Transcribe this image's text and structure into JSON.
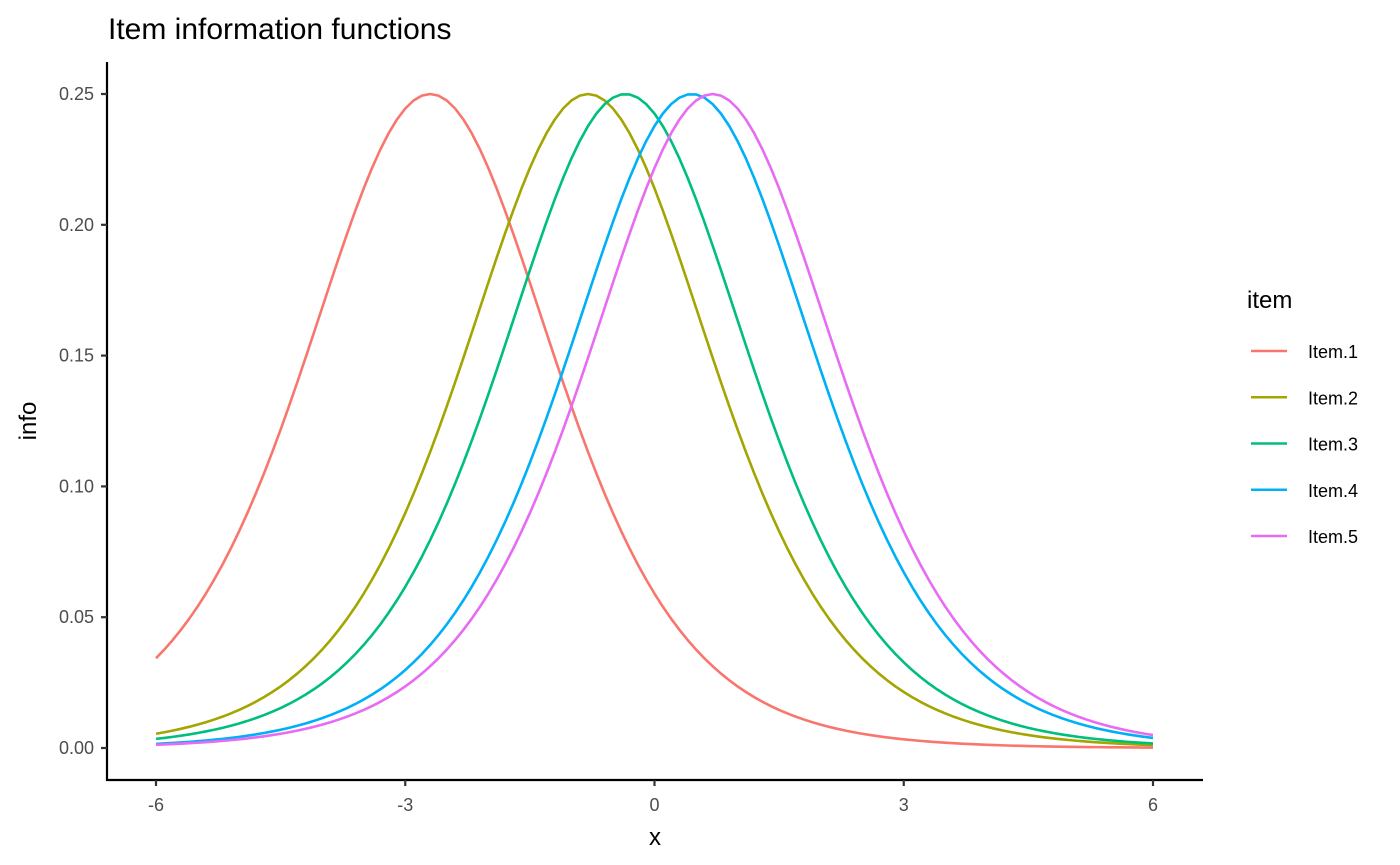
{
  "chart_data": {
    "type": "line",
    "title": "Item information functions",
    "xlabel": "x",
    "ylabel": "info",
    "xlim": [
      -6,
      6
    ],
    "ylim": [
      0,
      0.25
    ],
    "x_ticks": [
      -6,
      -3,
      0,
      3,
      6
    ],
    "x_tick_labels": [
      "-6",
      "-3",
      "0",
      "3",
      "6"
    ],
    "y_ticks": [
      0,
      0.05,
      0.1,
      0.15,
      0.2,
      0.25
    ],
    "y_tick_labels": [
      "0.00",
      "0.05",
      "0.10",
      "0.15",
      "0.20",
      "0.25"
    ],
    "grid": false,
    "legend": {
      "title": "item",
      "position": "right"
    },
    "series": [
      {
        "name": "Item.1",
        "color": "#F8766D",
        "difficulty": -2.7,
        "discrimination": 1.0,
        "peak_info": 0.25
      },
      {
        "name": "Item.2",
        "color": "#A3A500",
        "difficulty": -0.8,
        "discrimination": 1.0,
        "peak_info": 0.25
      },
      {
        "name": "Item.3",
        "color": "#00BF7D",
        "difficulty": -0.35,
        "discrimination": 1.0,
        "peak_info": 0.25
      },
      {
        "name": "Item.4",
        "color": "#00B0F6",
        "difficulty": 0.45,
        "discrimination": 1.0,
        "peak_info": 0.25
      },
      {
        "name": "Item.5",
        "color": "#E76BF3",
        "difficulty": 0.7,
        "discrimination": 1.0,
        "peak_info": 0.25
      }
    ],
    "x_sample_count": 121
  }
}
